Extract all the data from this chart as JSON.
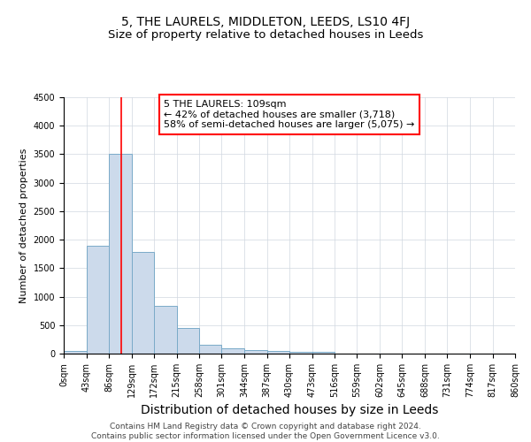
{
  "title": "5, THE LAURELS, MIDDLETON, LEEDS, LS10 4FJ",
  "subtitle": "Size of property relative to detached houses in Leeds",
  "xlabel": "Distribution of detached houses by size in Leeds",
  "ylabel": "Number of detached properties",
  "bar_edges": [
    0,
    43,
    86,
    129,
    172,
    215,
    258,
    301,
    344,
    387,
    430,
    473,
    516,
    559,
    602,
    645,
    688,
    731,
    774,
    817,
    860
  ],
  "bar_heights": [
    50,
    1900,
    3500,
    1780,
    840,
    450,
    160,
    95,
    60,
    50,
    35,
    30,
    0,
    0,
    0,
    0,
    0,
    0,
    0,
    0
  ],
  "bar_color": "#ccdaeb",
  "bar_edgecolor": "#7aaac8",
  "bar_linewidth": 0.7,
  "vline_x": 109,
  "vline_color": "red",
  "vline_linewidth": 1.2,
  "ylim": [
    0,
    4500
  ],
  "yticks": [
    0,
    500,
    1000,
    1500,
    2000,
    2500,
    3000,
    3500,
    4000,
    4500
  ],
  "annotation_text": "5 THE LAURELS: 109sqm\n← 42% of detached houses are smaller (3,718)\n58% of semi-detached houses are larger (5,075) →",
  "annotation_box_color": "#ffffff",
  "annotation_border_color": "red",
  "grid_color": "#d0d8e0",
  "background_color": "#ffffff",
  "footnote": "Contains HM Land Registry data © Crown copyright and database right 2024.\nContains public sector information licensed under the Open Government Licence v3.0.",
  "title_fontsize": 10,
  "subtitle_fontsize": 9.5,
  "xlabel_fontsize": 10,
  "ylabel_fontsize": 8,
  "tick_fontsize": 7,
  "annotation_fontsize": 8,
  "footnote_fontsize": 6.5
}
